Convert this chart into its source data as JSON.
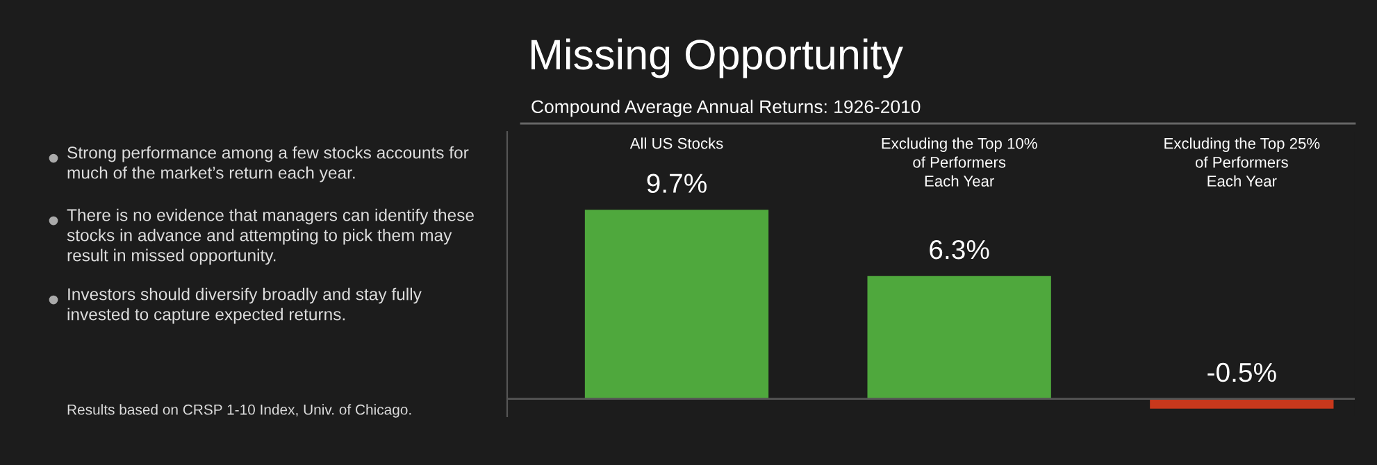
{
  "chart_data": {
    "type": "bar",
    "title": "Missing Opportunity",
    "subtitle": "Compound Average Annual Returns: 1926-2010",
    "categories": [
      "All US Stocks",
      "Excluding the Top 10%\nof Performers\nEach Year",
      "Excluding the Top 25%\nof Performers\nEach Year"
    ],
    "values": [
      9.7,
      6.3,
      -0.5
    ],
    "colors": [
      "#4fa83d",
      "#4fa83d",
      "#c8381c"
    ],
    "value_labels": [
      "9.7%",
      "6.3%",
      "-0.5%"
    ],
    "ylim": [
      -0.9,
      13.7
    ],
    "annotations": [
      "Strong performance among a few stocks accounts for\nmuch of the market’s return each year.",
      "There is no evidence that managers can identify these\nstocks in advance and attempting to pick them may\nresult in missed opportunity.",
      "Investors should diversify broadly and stay fully\ninvested to capture expected returns.",
      "Results based on CRSP 1-10 Index, Univ. of Chicago."
    ]
  }
}
